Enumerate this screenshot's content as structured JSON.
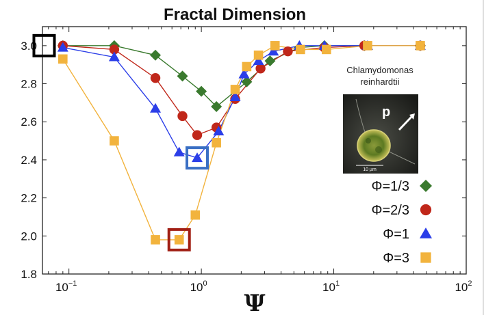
{
  "chart_data": {
    "type": "line",
    "title": "Fractal Dimension",
    "xlabel": "Ψ",
    "ylabel": "",
    "xscale": "log",
    "xlim": [
      0.0631,
      100
    ],
    "ylim": [
      1.8,
      3.1
    ],
    "x_ticks": [
      {
        "value": 0.1,
        "base": "10",
        "exp": "−1"
      },
      {
        "value": 1,
        "base": "10",
        "exp": "0"
      },
      {
        "value": 10,
        "base": "10",
        "exp": "1"
      },
      {
        "value": 100,
        "base": "10",
        "exp": "2"
      }
    ],
    "y_ticks": [
      "1.8",
      "2.0",
      "2.2",
      "2.4",
      "2.6",
      "2.8",
      "3.0"
    ],
    "grid": false,
    "legend_position": "lower-right",
    "series": [
      {
        "name": "Φ=1/3",
        "color": "#3a7a2e",
        "marker": "diamond",
        "x": [
          0.09,
          0.22,
          0.45,
          0.72,
          1.0,
          1.3,
          2.2,
          3.3,
          5.5,
          8.5,
          17,
          45
        ],
        "y": [
          3.0,
          3.0,
          2.95,
          2.84,
          2.76,
          2.68,
          2.81,
          2.92,
          2.99,
          3.0,
          3.0,
          3.0
        ]
      },
      {
        "name": "Φ=2/3",
        "color": "#c0271a",
        "marker": "circle",
        "x": [
          0.09,
          0.22,
          0.45,
          0.72,
          0.93,
          1.3,
          1.8,
          2.8,
          4.5,
          8.5,
          17,
          45
        ],
        "y": [
          3.0,
          2.98,
          2.83,
          2.63,
          2.53,
          2.57,
          2.72,
          2.88,
          2.97,
          2.99,
          3.0,
          3.0
        ]
      },
      {
        "name": "Φ=1",
        "color": "#2b3ee8",
        "marker": "triangle",
        "x": [
          0.09,
          0.22,
          0.45,
          0.68,
          0.93,
          1.35,
          1.8,
          2.1,
          2.7,
          3.5,
          5.5,
          8.5,
          18,
          45
        ],
        "y": [
          2.99,
          2.94,
          2.67,
          2.44,
          2.41,
          2.55,
          2.73,
          2.85,
          2.92,
          2.97,
          3.0,
          3.0,
          3.0,
          3.0
        ]
      },
      {
        "name": "Φ=3",
        "color": "#f2b33d",
        "marker": "square",
        "x": [
          0.09,
          0.22,
          0.45,
          0.68,
          0.9,
          1.3,
          1.8,
          2.2,
          2.7,
          3.6,
          5.6,
          8.8,
          18,
          45
        ],
        "y": [
          2.93,
          2.5,
          1.98,
          1.98,
          2.11,
          2.49,
          2.77,
          2.89,
          2.95,
          3.0,
          2.98,
          2.98,
          3.0,
          3.0
        ]
      }
    ],
    "highlights": [
      {
        "x": 0.065,
        "y": 3.0,
        "color": "#000000"
      },
      {
        "x": 0.93,
        "y": 2.41,
        "color": "#3a6fc4"
      },
      {
        "x": 0.68,
        "y": 1.98,
        "color": "#a11f14"
      }
    ],
    "inset": {
      "label_line1": "Chlamydomonas",
      "label_line2": "reinhardtii",
      "arrow_label": "p",
      "scale_bar": "10 µm"
    }
  }
}
